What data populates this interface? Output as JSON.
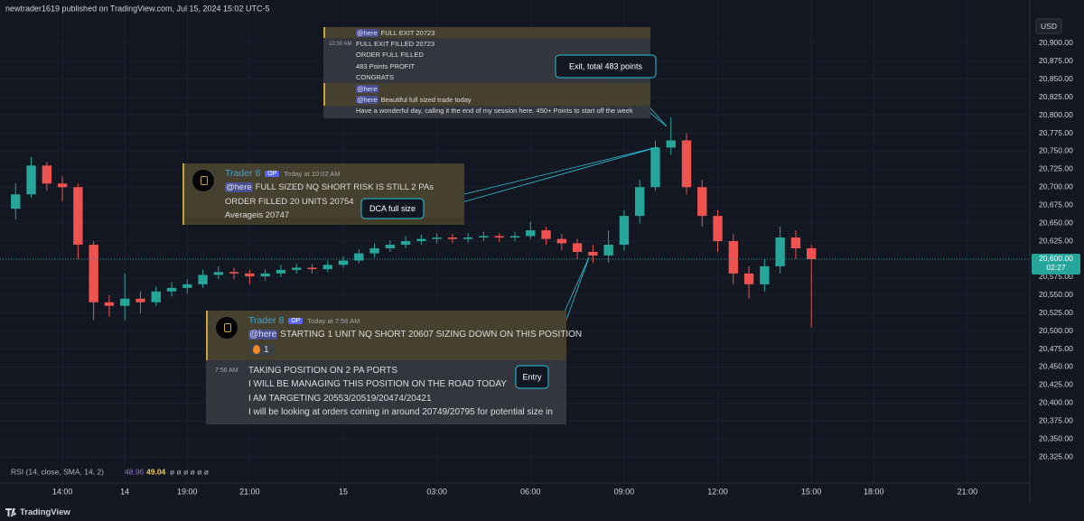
{
  "header": "newtrader1619 published on TradingView.com, Jul 15, 2024 15:02 UTC-5",
  "chart_data": {
    "type": "candlestick",
    "currency": "USD",
    "x": [
      -3.5,
      -3,
      -2.5,
      -2,
      -1.5,
      -1,
      -0.5,
      0,
      0.5,
      1,
      1.5,
      2,
      2.5,
      3,
      3.5,
      4,
      4.5,
      5,
      5.5,
      6,
      6.5,
      7,
      7.5,
      8,
      8.5,
      9,
      9.5,
      10,
      10.5,
      11,
      11.5,
      12,
      12.5,
      13,
      13.5,
      14,
      14.5,
      15,
      15.5,
      16,
      16.5,
      17,
      17.5,
      18,
      18.5,
      19,
      19.5,
      20,
      20.5,
      21,
      21.5,
      22
    ],
    "open": [
      20670,
      20690,
      20730,
      20705,
      20700,
      20620,
      20540,
      20535,
      20545,
      20540,
      20555,
      20560,
      20565,
      20578,
      20582,
      20580,
      20576,
      20580,
      20585,
      20588,
      20586,
      20592,
      20598,
      20608,
      20615,
      20620,
      20625,
      20628,
      20630,
      20628,
      20630,
      20632,
      20630,
      20632,
      20640,
      20628,
      20622,
      20610,
      20605,
      20620,
      20660,
      20700,
      20755,
      20765,
      20700,
      20660,
      20625,
      20580,
      20565,
      20590,
      20630,
      20615
    ],
    "high": [
      20705,
      20742,
      20735,
      20715,
      20705,
      20625,
      20550,
      20580,
      20555,
      20562,
      20568,
      20572,
      20585,
      20590,
      20588,
      20585,
      20586,
      20592,
      20594,
      20593,
      20598,
      20604,
      20614,
      20622,
      20626,
      20632,
      20634,
      20636,
      20635,
      20636,
      20638,
      20636,
      20638,
      20652,
      20645,
      20635,
      20628,
      20620,
      20640,
      20668,
      20710,
      20765,
      20797,
      20775,
      20710,
      20668,
      20635,
      20590,
      20600,
      20645,
      20640,
      20620
    ],
    "low": [
      20655,
      20685,
      20695,
      20680,
      20600,
      20515,
      20520,
      20515,
      20525,
      20535,
      20548,
      20552,
      20560,
      20572,
      20572,
      20565,
      20570,
      20575,
      20580,
      20580,
      20582,
      20588,
      20594,
      20602,
      20610,
      20615,
      20620,
      20622,
      20622,
      20623,
      20625,
      20624,
      20625,
      20628,
      20620,
      20612,
      20600,
      20595,
      20595,
      20612,
      20650,
      20695,
      20745,
      20690,
      20645,
      20610,
      20565,
      20545,
      20555,
      20580,
      20600,
      20505
    ],
    "close": [
      20690,
      20730,
      20705,
      20700,
      20620,
      20540,
      20535,
      20545,
      20540,
      20555,
      20560,
      20565,
      20578,
      20582,
      20580,
      20576,
      20580,
      20585,
      20588,
      20586,
      20592,
      20598,
      20608,
      20615,
      20620,
      20625,
      20628,
      20630,
      20628,
      20630,
      20632,
      20630,
      20632,
      20640,
      20628,
      20622,
      20610,
      20605,
      20620,
      20660,
      20700,
      20755,
      20765,
      20700,
      20660,
      20625,
      20580,
      20565,
      20590,
      20630,
      20615,
      20600
    ],
    "up_color": "#26a69a",
    "down_color": "#ef5350",
    "xlim": [
      -4,
      29
    ],
    "xticks": [
      {
        "value": -2,
        "label": "14:00"
      },
      {
        "value": 0,
        "label": "14"
      },
      {
        "value": 2,
        "label": "19:00"
      },
      {
        "value": 4,
        "label": "21:00"
      },
      {
        "value": 7,
        "label": "15"
      },
      {
        "value": 10,
        "label": "03:00"
      },
      {
        "value": 13,
        "label": "06:00"
      },
      {
        "value": 16,
        "label": "09:00"
      },
      {
        "value": 19,
        "label": "12:00"
      },
      {
        "value": 22,
        "label": "15:00"
      },
      {
        "value": 24,
        "label": "18:00"
      },
      {
        "value": 27,
        "label": "21:00"
      }
    ],
    "ylim": [
      20295,
      20935
    ],
    "yticks": [
      {
        "value": 20325,
        "label": "20,325.00"
      },
      {
        "value": 20350,
        "label": "20,350.00"
      },
      {
        "value": 20375,
        "label": "20,375.00"
      },
      {
        "value": 20400,
        "label": "20,400.00"
      },
      {
        "value": 20425,
        "label": "20,425.00"
      },
      {
        "value": 20450,
        "label": "20,450.00"
      },
      {
        "value": 20475,
        "label": "20,475.00"
      },
      {
        "value": 20500,
        "label": "20,500.00"
      },
      {
        "value": 20525,
        "label": "20,525.00"
      },
      {
        "value": 20550,
        "label": "20,550.00"
      },
      {
        "value": 20575,
        "label": "20,575.00"
      },
      {
        "value": 20600,
        "label": "20,600.00"
      },
      {
        "value": 20625,
        "label": "20,625.00"
      },
      {
        "value": 20650,
        "label": "20,650.00"
      },
      {
        "value": 20675,
        "label": "20,675.00"
      },
      {
        "value": 20700,
        "label": "20,700.00"
      },
      {
        "value": 20725,
        "label": "20,725.00"
      },
      {
        "value": 20750,
        "label": "20,750.00"
      },
      {
        "value": 20775,
        "label": "20,775.00"
      },
      {
        "value": 20800,
        "label": "20,800.00"
      },
      {
        "value": 20825,
        "label": "20,825.00"
      },
      {
        "value": 20850,
        "label": "20,850.00"
      },
      {
        "value": 20875,
        "label": "20,875.00"
      },
      {
        "value": 20900,
        "label": "20,900.00"
      }
    ],
    "grid": true,
    "last_price": {
      "value": 20600,
      "label": "20,600.00"
    },
    "countdown": "02:27",
    "indicator": {
      "name": "RSI (14, close, SMA, 14, 2)",
      "values": [
        48.96,
        49.04
      ],
      "colors": [
        "#9575cd",
        "#f7c948"
      ],
      "placeholders": "ø ø ø ø ø ø"
    },
    "annotations": [
      "Exit, total 483 points",
      "DCA full size",
      "Entry"
    ]
  },
  "messages": [
    {
      "lines": [
        {
          "mention": "@here",
          "text": "FULL EXIT 20723"
        },
        {
          "time": "10:30 AM",
          "text": "FULL EXIT FILLED 20723"
        },
        {
          "text": "ORDER FULL FILLED"
        },
        {
          "text": "483 Points PROFIT"
        },
        {
          "text": "CONGRATS"
        },
        {
          "mention": "@here"
        },
        {
          "mention": "@here",
          "text": "Beautiful full sized trade today"
        },
        {
          "text": "Have a wonderful day, calling it the end of my session here. 450+ Points to start off the week"
        }
      ]
    },
    {
      "author": "Trader 8",
      "badge": "OP",
      "time": "Today at 10:02 AM",
      "lines": [
        {
          "mention": "@here",
          "text": "FULL SIZED NQ SHORT RISK IS STILL 2 PAs"
        },
        {
          "text": "ORDER FILLED 20 UNITS 20754"
        },
        {
          "text": "Averageis 20747"
        }
      ]
    },
    {
      "author": "Trader 8",
      "badge": "OP",
      "time": "Today at 7:56 AM",
      "lines": [
        {
          "mention": "@here",
          "text": "STARTING 1 UNIT NQ SHORT 20607 SIZING DOWN ON THIS POSITION"
        }
      ],
      "reaction": 1,
      "followup": {
        "time": "7:56 AM",
        "lines": [
          {
            "text": "TAKING POSITION ON 2 PA PORTS"
          },
          {
            "text": "I WILL BE MANAGING THIS POSITION ON THE ROAD TODAY"
          },
          {
            "text": "I AM TARGETING 20553/20519/20474/20421"
          },
          {
            "text": "I will be looking at orders coming in around 20749/20795 for potential size in"
          }
        ]
      }
    }
  ],
  "footer": "TradingView"
}
